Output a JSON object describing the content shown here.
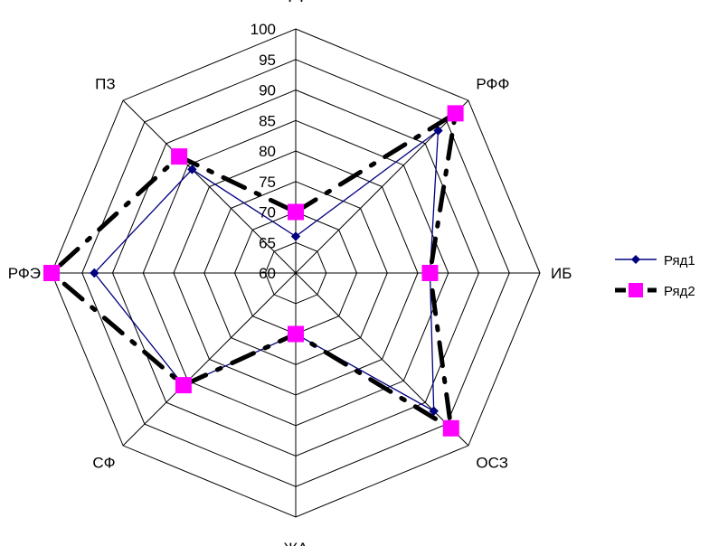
{
  "chart_data": {
    "type": "radar",
    "categories": [
      "ФФ",
      "РФФ",
      "ИБ",
      "ОСЗ",
      "ЖА",
      "СФ",
      "РФЭ",
      "ПЗ"
    ],
    "rlim": [
      60,
      100
    ],
    "r_ticks": [
      "60",
      "65",
      "70",
      "75",
      "80",
      "85",
      "90",
      "95",
      "100"
    ],
    "grid": true,
    "legend_position": "right",
    "series": [
      {
        "name": "Ряд1",
        "values": [
          66,
          93,
          82,
          92,
          70,
          86,
          93,
          84
        ],
        "color": "#000080",
        "marker": "diamond",
        "line": "solid"
      },
      {
        "name": "Ряд2",
        "values": [
          70,
          97,
          82,
          96,
          70,
          86,
          100,
          87
        ],
        "color": "#000000",
        "marker_color": "#ff00ff",
        "marker": "square",
        "line": "dash-dot"
      }
    ]
  }
}
